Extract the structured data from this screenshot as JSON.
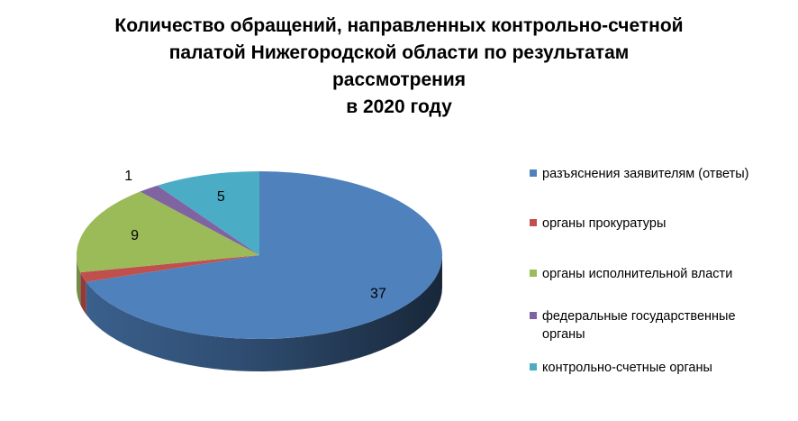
{
  "chart_data": {
    "type": "pie3d",
    "title": "Количество обращений, направленных контрольно-счетной\nпалатой Нижегородской области по результатам\nрассмотрения\nв 2020 году",
    "categories": [
      "разъяснения заявителям (ответы)",
      "органы прокуратуры",
      "органы исполнительной власти",
      "федеральные государственные органы",
      "контрольно-счетные органы"
    ],
    "values": [
      37,
      1,
      9,
      1,
      5
    ],
    "colors": [
      "#4f81bd",
      "#c0504d",
      "#9bbb59",
      "#8064a2",
      "#4bacc6"
    ],
    "data_labels": [
      true,
      false,
      true,
      true,
      true
    ],
    "legend": "right"
  }
}
